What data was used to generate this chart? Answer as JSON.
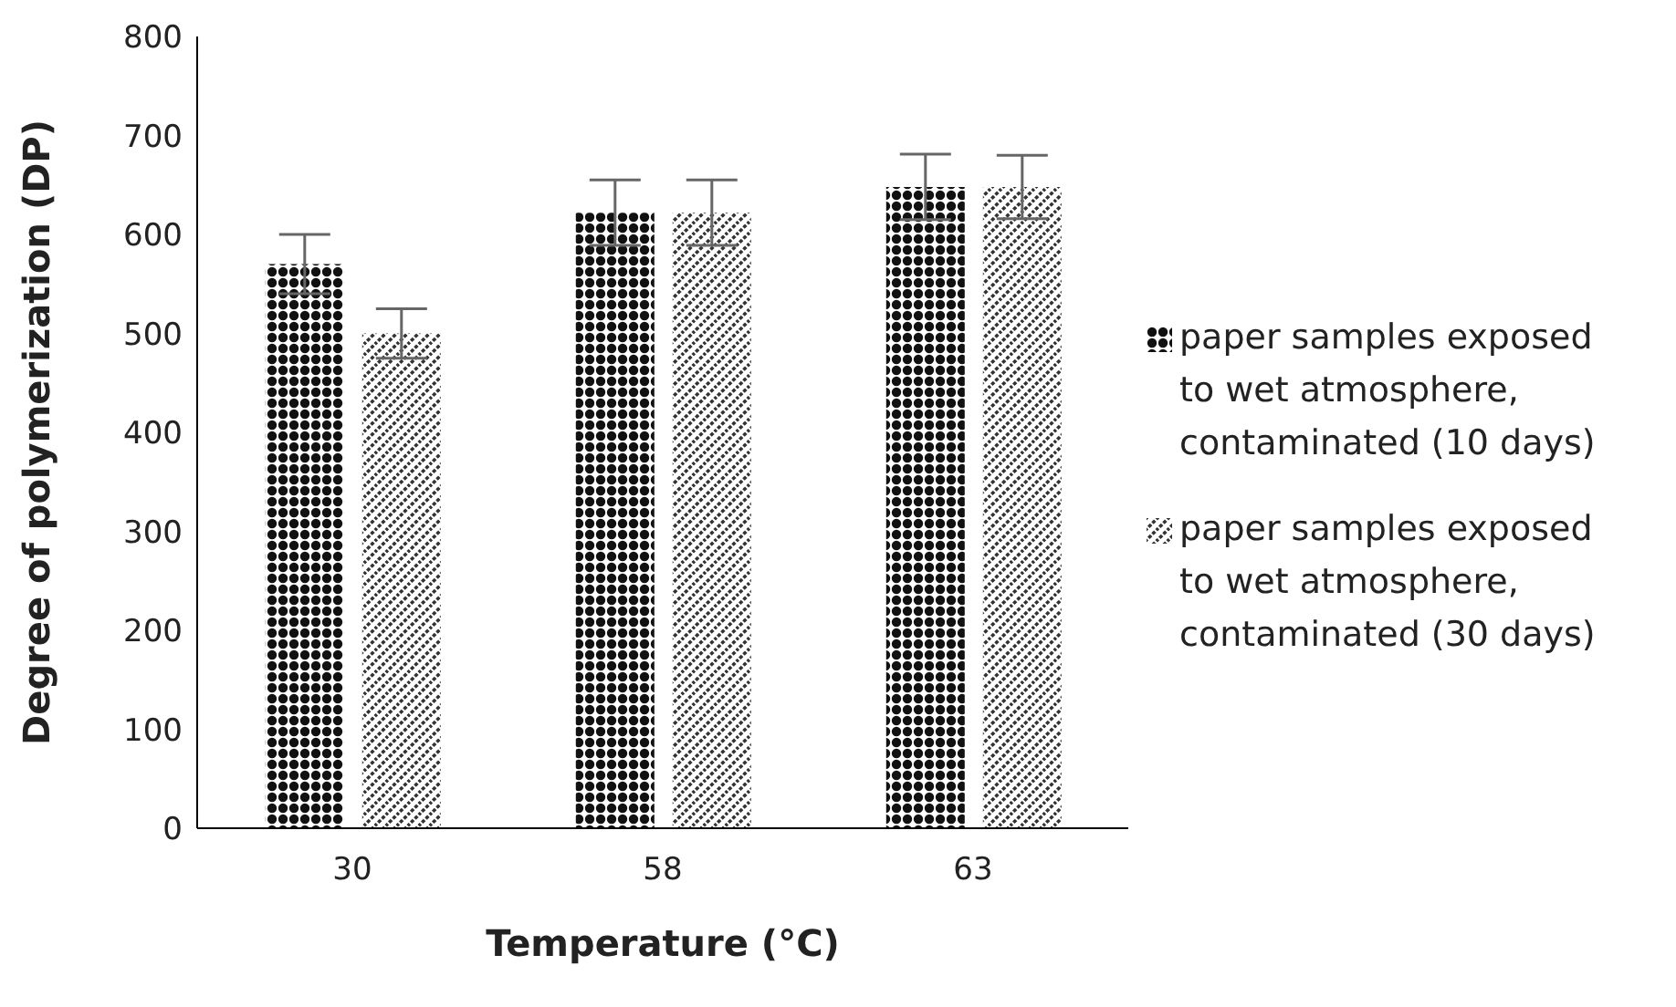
{
  "chart_data": {
    "type": "bar",
    "xlabel": "Temperature (°C)",
    "ylabel": "Degree of polymerization (DP)",
    "categories": [
      "30",
      "58",
      "63"
    ],
    "series": [
      {
        "name": "paper samples exposed to wet atmosphere, contaminated (10 days)",
        "color": "#111111",
        "values": [
          570,
          622,
          648
        ],
        "errors": [
          30,
          33,
          33
        ]
      },
      {
        "name": "paper samples exposed to wet atmosphere, contaminated (30 days)",
        "color": "#333333",
        "values": [
          500,
          622,
          648
        ],
        "errors": [
          25,
          33,
          32
        ]
      }
    ],
    "ylim": [
      0,
      800
    ],
    "yticks": [
      0,
      100,
      200,
      300,
      400,
      500,
      600,
      700,
      800
    ],
    "grid": false,
    "legend": "right"
  }
}
